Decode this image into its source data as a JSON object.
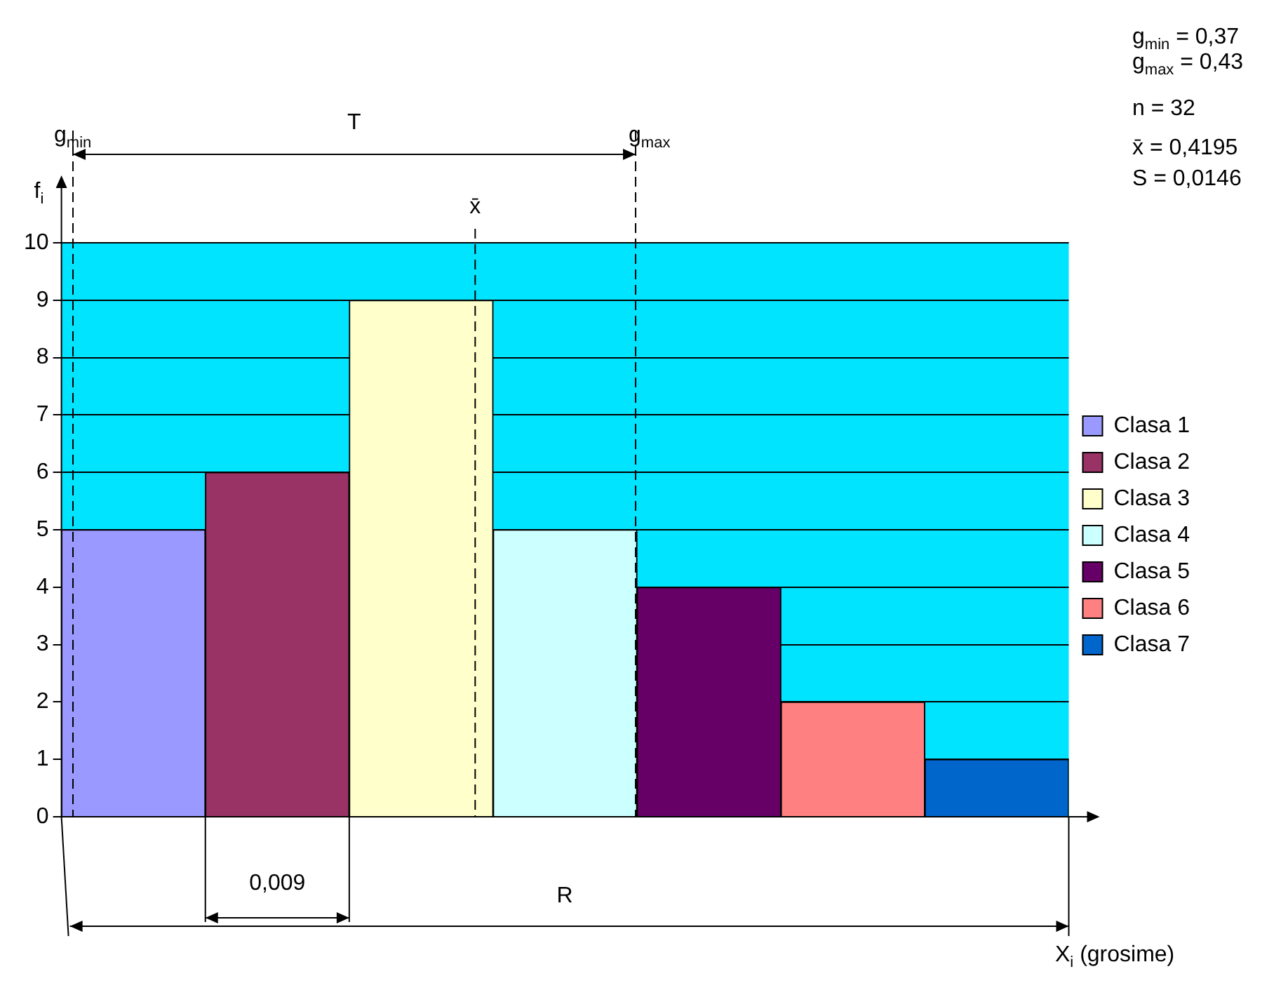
{
  "chart_data": {
    "type": "bar",
    "ylabel": "f$_{i}$",
    "categories": [
      null,
      null,
      null,
      null,
      null,
      null,
      null
    ],
    "series": [
      {
        "name": "Clasa 1",
        "color": "#9999ff",
        "values": [
          5,
          null,
          null,
          null,
          null,
          null,
          null
        ]
      },
      {
        "name": "Clasa 2",
        "color": "#993366",
        "values": [
          null,
          6,
          null,
          null,
          null,
          null,
          null
        ]
      },
      {
        "name": "Clasa 3",
        "color": "#ffffcc",
        "values": [
          null,
          null,
          9,
          null,
          null,
          null,
          null
        ]
      },
      {
        "name": "Clasa 4",
        "color": "#ccffff",
        "values": [
          null,
          null,
          null,
          5,
          null,
          null,
          null
        ]
      },
      {
        "name": "Clasa 5",
        "color": "#660066",
        "values": [
          null,
          null,
          null,
          null,
          4,
          null,
          null
        ]
      },
      {
        "name": "Clasa 6",
        "color": "#ff8080",
        "values": [
          null,
          null,
          null,
          null,
          null,
          2,
          null
        ]
      },
      {
        "name": "Clasa 7",
        "color": "#0066cc",
        "values": [
          null,
          null,
          null,
          null,
          null,
          null,
          1
        ]
      }
    ],
    "ylim": [
      0,
      10
    ],
    "yticks": [
      0,
      1,
      2,
      3,
      4,
      5,
      6,
      7,
      8,
      9,
      10
    ],
    "grid": "y",
    "legend": "right",
    "tick_labels": "y",
    "annotations": [
      "g$_{min}$",
      "g$_{max}$",
      "T",
      "x̄",
      "0,009",
      "R",
      "g$_{min}$ = 0,37",
      "g$_{max}$ = 0,43",
      "n  =  32",
      "x̄  =  0,4195",
      "S  = 0,0146",
      "X$_{i}$ (grosime)"
    ]
  }
}
